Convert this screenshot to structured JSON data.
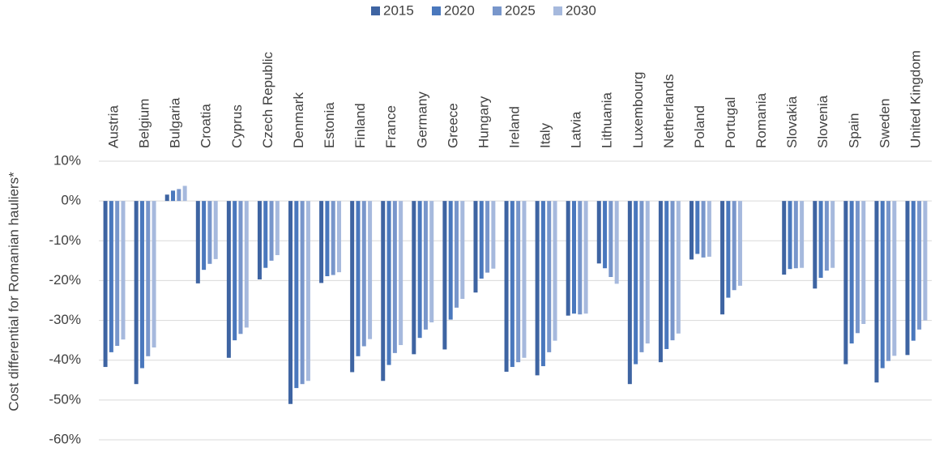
{
  "chart_data": {
    "type": "bar",
    "y_label": "Cost differential for Romanian hauliers*",
    "categories": [
      "Austria",
      "Belgium",
      "Bulgaria",
      "Croatia",
      "Cyprus",
      "Czech Republic",
      "Denmark",
      "Estonia",
      "Finland",
      "France",
      "Germany",
      "Greece",
      "Hungary",
      "Ireland",
      "Italy",
      "Latvia",
      "Lithuania",
      "Luxembourg",
      "Netherlands",
      "Poland",
      "Portugal",
      "Romania",
      "Slovakia",
      "Slovenia",
      "Spain",
      "Sweden",
      "United Kingdom"
    ],
    "series": [
      {
        "name": "2015",
        "color": "#3e64a2",
        "values": [
          -41.7,
          -46,
          1.6,
          -20.7,
          -39.4,
          -19.7,
          -51,
          -20.6,
          -43,
          -45.2,
          -38.5,
          -37.3,
          -23,
          -42.9,
          -43.8,
          -28.8,
          -15.7,
          -46,
          -40.5,
          -14.7,
          -28.5,
          0,
          -18.5,
          -22,
          -41,
          -45.6,
          -38.7
        ]
      },
      {
        "name": "2020",
        "color": "#4a78bd",
        "values": [
          -38,
          -42,
          2.6,
          -17.3,
          -35,
          -16.8,
          -47,
          -18.9,
          -39,
          -41.2,
          -34.4,
          -29.8,
          -19.5,
          -41.7,
          -41.5,
          -28.3,
          -16.9,
          -41,
          -37.2,
          -13.3,
          -24.3,
          0,
          -17.1,
          -19.3,
          -35.8,
          -42,
          -35.1
        ]
      },
      {
        "name": "2025",
        "color": "#7896cb",
        "values": [
          -36.4,
          -39,
          3,
          -15.8,
          -33.4,
          -15,
          -46,
          -18.6,
          -36.5,
          -38.2,
          -32.3,
          -26.8,
          -18,
          -40.5,
          -38,
          -28.5,
          -19.1,
          -38,
          -35,
          -14.2,
          -22.4,
          0,
          -16.9,
          -17.5,
          -33.2,
          -40.2,
          -32.3
        ]
      },
      {
        "name": "2030",
        "color": "#a6b9dd",
        "values": [
          -34.8,
          -36.8,
          3.8,
          -14.6,
          -31.8,
          -13.6,
          -45.2,
          -17.9,
          -34.7,
          -36.2,
          -30.5,
          -24.6,
          -17,
          -39.4,
          -35.1,
          -28.3,
          -20.8,
          -35.8,
          -33.3,
          -14,
          -21.3,
          0,
          -16.8,
          -16.8,
          -30.9,
          -38.9,
          -30
        ]
      }
    ],
    "ylim": [
      -60,
      10
    ],
    "yticks": [
      {
        "value": 10,
        "label": "10%"
      },
      {
        "value": 0,
        "label": "0%"
      },
      {
        "value": -10,
        "label": "-10%"
      },
      {
        "value": -20,
        "label": "-20%"
      },
      {
        "value": -30,
        "label": "-30%"
      },
      {
        "value": -40,
        "label": "-40%"
      },
      {
        "value": -50,
        "label": "-50%"
      },
      {
        "value": -60,
        "label": "-60%"
      }
    ],
    "grid": true,
    "legend": "top"
  }
}
